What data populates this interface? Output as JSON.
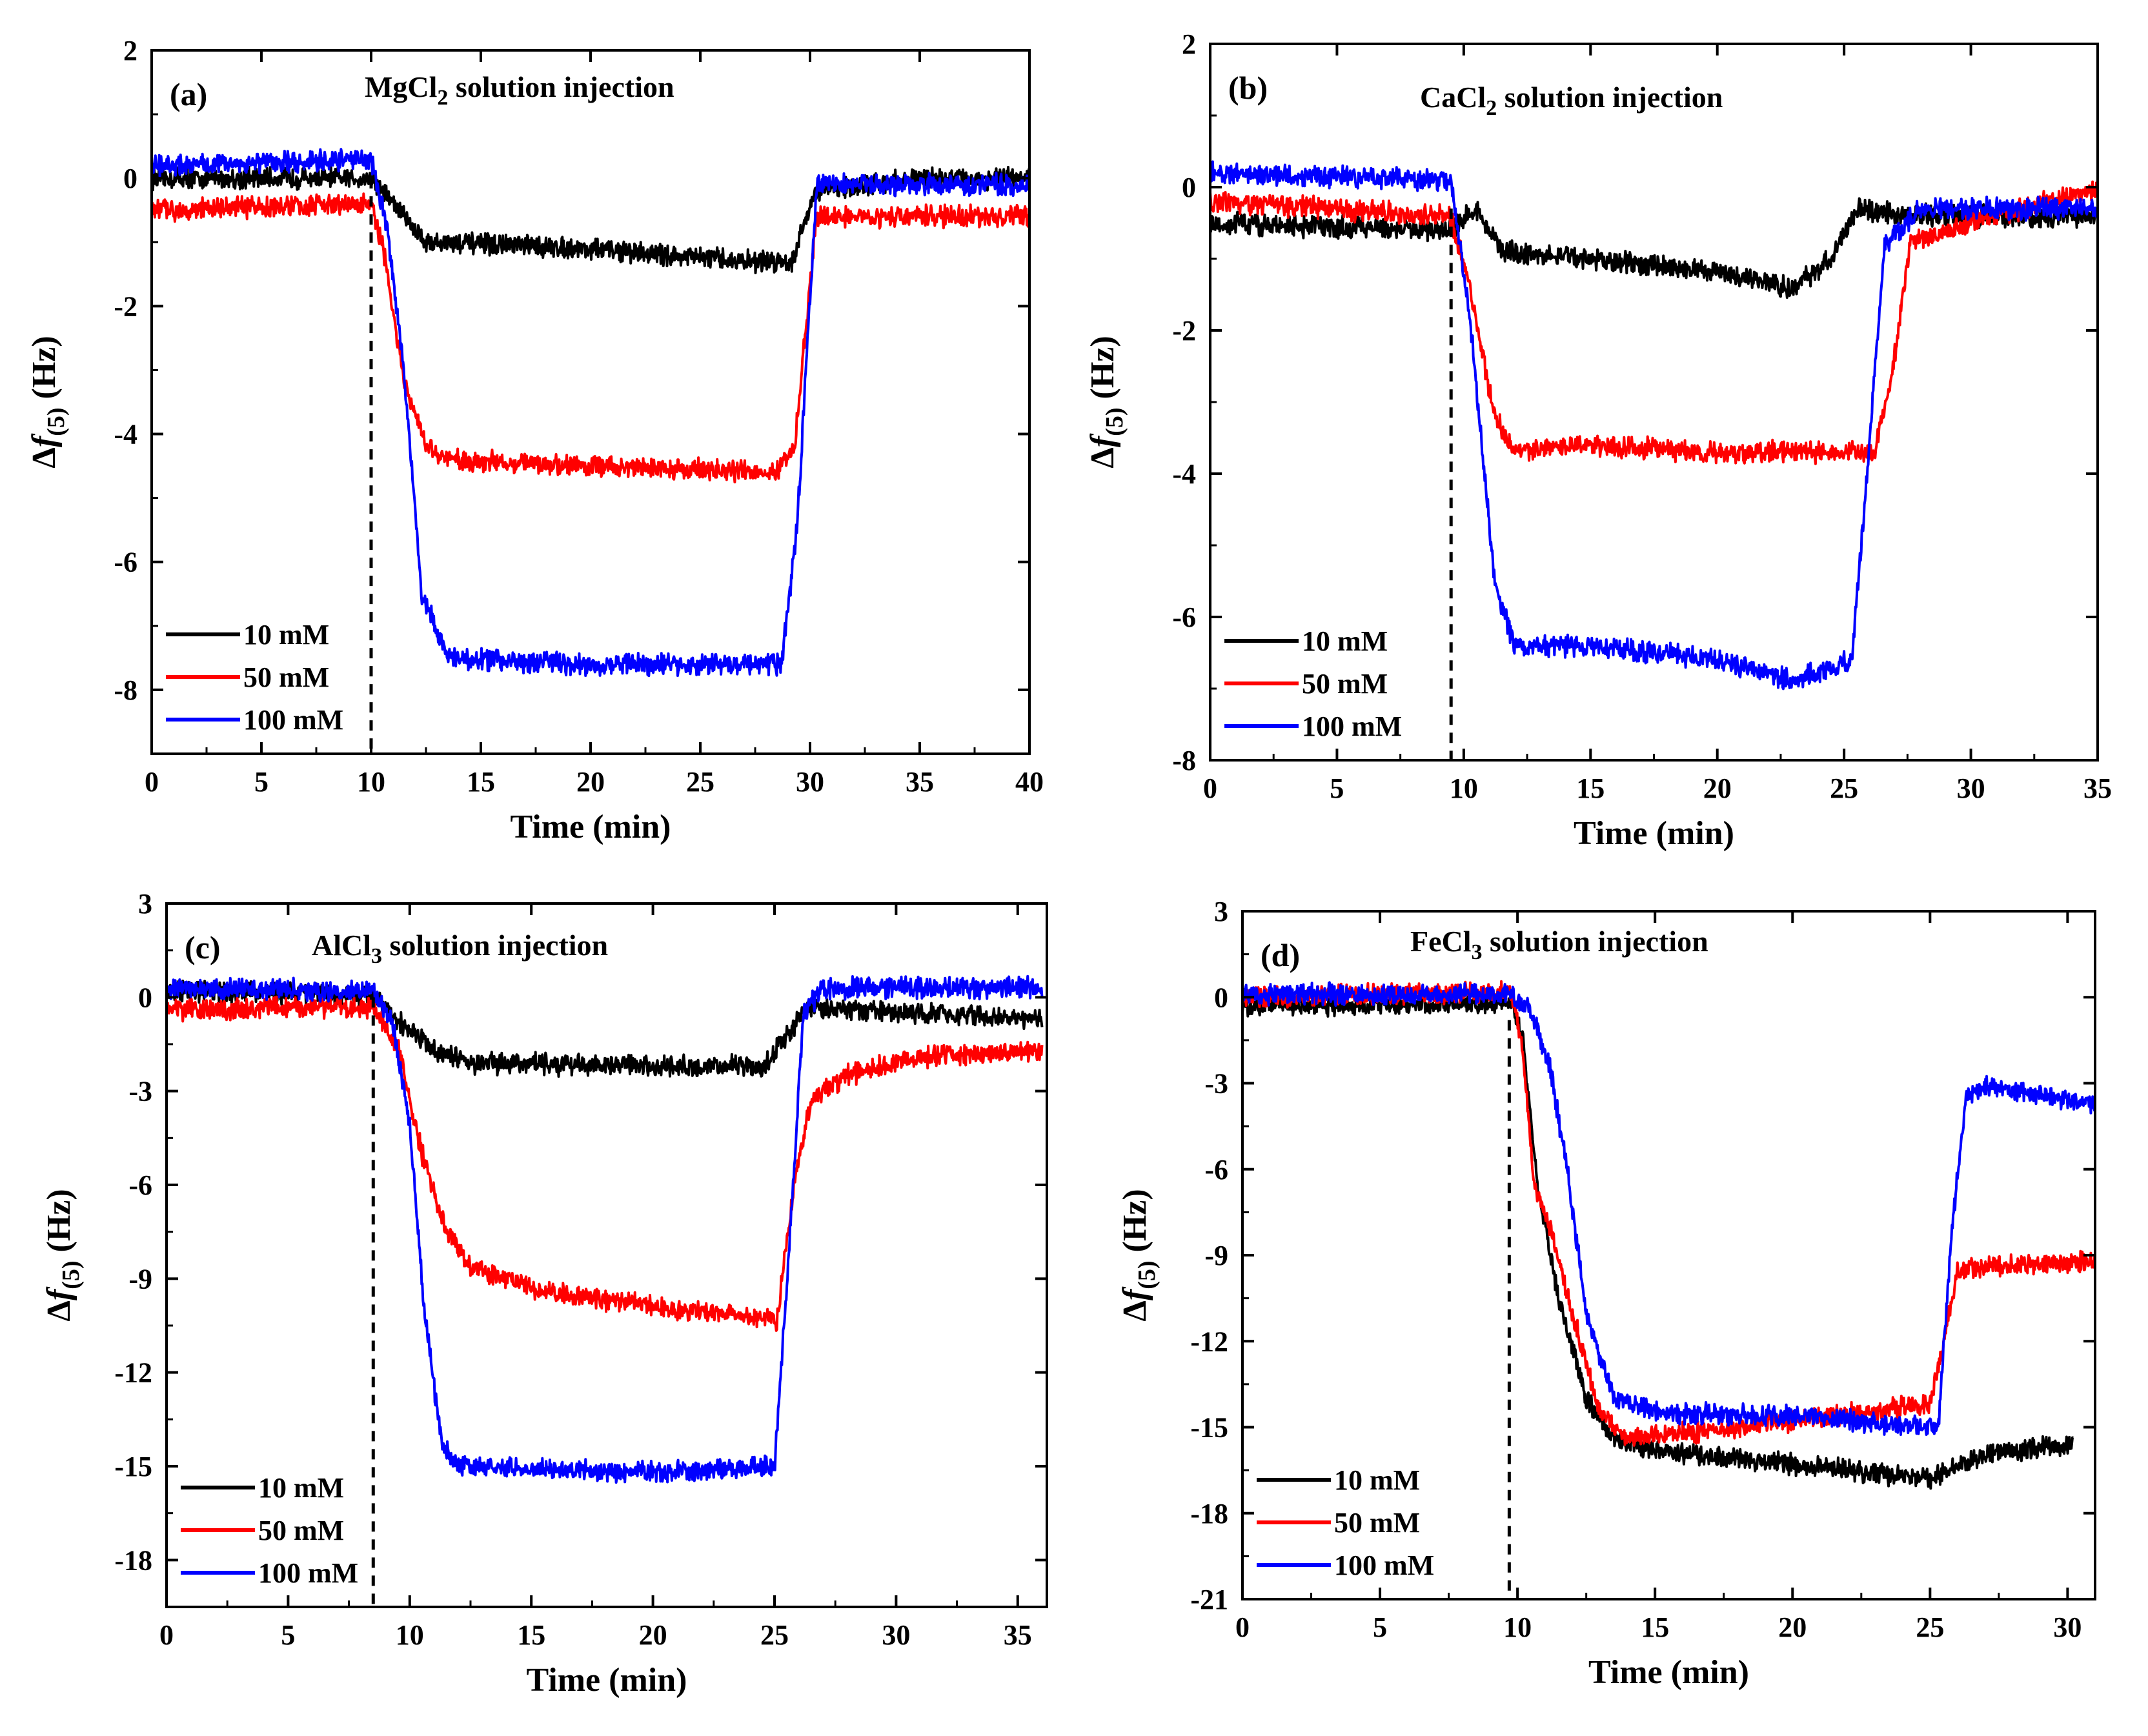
{
  "colors": {
    "10 mM": "#000000",
    "50 mM": "#ff0000",
    "100 mM": "#0000ff",
    "axes": "#000000",
    "background": "#ffffff"
  },
  "chart_data": [
    {
      "type": "line",
      "panel_label": "(a)",
      "title": "MgCl2 solution injection",
      "title_prefix": "MgCl",
      "title_subscript": "2",
      "title_suffix": " solution injection",
      "xlabel": "Time (min)",
      "ylabel": "Δf(5) (Hz)",
      "xlim": [
        0,
        40
      ],
      "ylim": [
        -9,
        2
      ],
      "xticks": [
        0,
        5,
        10,
        15,
        20,
        25,
        30,
        35,
        40
      ],
      "yticks": [
        -8,
        -6,
        -4,
        -2,
        0,
        2
      ],
      "injection_time": 10,
      "legend_position": "bottom-left",
      "series": [
        {
          "name": "10  mM",
          "color": "#000000",
          "x": [
            0,
            10,
            10.8,
            12.5,
            20,
            27,
            29.2,
            30.2,
            35,
            40
          ],
          "y": [
            0,
            0,
            -0.3,
            -1.0,
            -1.1,
            -1.3,
            -1.3,
            -0.2,
            0,
            0
          ]
        },
        {
          "name": "50  mM",
          "color": "#ff0000",
          "x": [
            0,
            10,
            10.6,
            11.5,
            12.5,
            13.5,
            20,
            28.5,
            29.3,
            30.3,
            35,
            40
          ],
          "y": [
            -0.5,
            -0.4,
            -1.2,
            -3.2,
            -4.2,
            -4.4,
            -4.5,
            -4.6,
            -4.2,
            -0.6,
            -0.6,
            -0.6
          ]
        },
        {
          "name": "100 mM",
          "color": "#0000ff",
          "x": [
            0,
            10,
            10.7,
            11.5,
            12.3,
            13.5,
            20,
            28.7,
            29.4,
            30.3,
            35,
            40
          ],
          "y": [
            0.2,
            0.3,
            -0.7,
            -3.0,
            -6.5,
            -7.5,
            -7.6,
            -7.6,
            -5.5,
            -0.1,
            -0.1,
            -0.1
          ]
        }
      ]
    },
    {
      "type": "line",
      "panel_label": "(b)",
      "title": "CaCl2 solution injection",
      "title_prefix": "CaCl",
      "title_subscript": "2",
      "title_suffix": " solution injection",
      "xlabel": "Time (min)",
      "ylabel": "Δf(5) (Hz)",
      "xlim": [
        0,
        35
      ],
      "ylim": [
        -8,
        2
      ],
      "xticks": [
        0,
        5,
        10,
        15,
        20,
        25,
        30,
        35
      ],
      "yticks": [
        -8,
        -6,
        -4,
        -2,
        0,
        2
      ],
      "injection_time": 9.5,
      "legend_position": "bottom-left",
      "series": [
        {
          "name": "10  mM",
          "color": "#000000",
          "x": [
            0,
            9.5,
            10.5,
            11.5,
            15,
            20,
            23,
            24.5,
            25.5,
            28,
            35
          ],
          "y": [
            -0.5,
            -0.6,
            -0.3,
            -0.9,
            -1.0,
            -1.2,
            -1.4,
            -1.0,
            -0.3,
            -0.4,
            -0.4
          ]
        },
        {
          "name": "50  mM",
          "color": "#ff0000",
          "x": [
            0,
            9.5,
            10.3,
            11.2,
            12,
            15,
            20,
            26.2,
            26.9,
            27.6,
            30,
            35
          ],
          "y": [
            -0.2,
            -0.4,
            -1.5,
            -3.2,
            -3.7,
            -3.6,
            -3.7,
            -3.7,
            -2.6,
            -0.8,
            -0.5,
            0.0
          ]
        },
        {
          "name": "100 mM",
          "color": "#0000ff",
          "x": [
            0,
            9.5,
            10.3,
            11.2,
            12,
            15,
            20,
            23,
            25.3,
            25.9,
            26.6,
            28,
            35
          ],
          "y": [
            0.2,
            0.1,
            -2.0,
            -5.5,
            -6.4,
            -6.4,
            -6.6,
            -6.9,
            -6.6,
            -4.0,
            -0.8,
            -0.3,
            -0.3
          ]
        }
      ]
    },
    {
      "type": "line",
      "panel_label": "(c)",
      "title": "AlCl3 solution injection",
      "title_prefix": "AlCl",
      "title_subscript": "3",
      "title_suffix": " solution injection",
      "xlabel": "Time (min)",
      "ylabel": "Δf(5) (Hz)",
      "xlim": [
        0,
        36.2
      ],
      "ylim": [
        -19.5,
        3
      ],
      "xticks": [
        0,
        5,
        10,
        15,
        20,
        25,
        30,
        35
      ],
      "yticks": [
        -18,
        -15,
        -12,
        -9,
        -6,
        -3,
        0,
        3
      ],
      "injection_time": 8.5,
      "legend_position": "bottom-left",
      "series": [
        {
          "name": "10 mM",
          "color": "#000000",
          "x": [
            0,
            8.5,
            9.5,
            11,
            12.5,
            20,
            24.5,
            25.5,
            26.3,
            28,
            36
          ],
          "y": [
            0.2,
            0.1,
            -0.7,
            -1.7,
            -2.1,
            -2.2,
            -2.2,
            -1.3,
            -0.3,
            -0.4,
            -0.7
          ]
        },
        {
          "name": "50 mM",
          "color": "#ff0000",
          "x": [
            0,
            8.5,
            9.6,
            10.5,
            11.5,
            12.5,
            15,
            20,
            25.1,
            25.8,
            26.5,
            28,
            31,
            36
          ],
          "y": [
            -0.4,
            -0.3,
            -1.8,
            -5.0,
            -7.5,
            -8.6,
            -9.3,
            -9.9,
            -10.3,
            -6.0,
            -3.3,
            -2.5,
            -1.9,
            -1.7
          ]
        },
        {
          "name": "100 mM",
          "color": "#0000ff",
          "x": [
            0,
            8.5,
            9.3,
            10.0,
            10.6,
            11.3,
            12,
            20,
            25.0,
            25.6,
            26.2,
            27,
            36
          ],
          "y": [
            0.3,
            0.2,
            -0.8,
            -4.0,
            -10.0,
            -14.2,
            -15.0,
            -15.2,
            -15.0,
            -8.0,
            -0.5,
            0.3,
            0.3
          ]
        }
      ]
    },
    {
      "type": "line",
      "panel_label": "(d)",
      "title": "FeCl3 solution injection",
      "title_prefix": "FeCl",
      "title_subscript": "3",
      "title_suffix": " solution injection",
      "xlabel": "Time (min)",
      "ylabel": "Δf(5) (Hz)",
      "xlim": [
        0,
        31
      ],
      "ylim": [
        -21,
        3
      ],
      "xticks": [
        0,
        5,
        10,
        15,
        20,
        25,
        30
      ],
      "yticks": [
        -21,
        -18,
        -15,
        -12,
        -9,
        -6,
        -3,
        0,
        3
      ],
      "injection_time": 9.7,
      "legend_position": "bottom-left",
      "series": [
        {
          "name": "10 mM",
          "color": "#000000",
          "x": [
            0,
            9.8,
            10.2,
            10.7,
            11.5,
            12.5,
            13.5,
            15,
            20,
            25,
            26.5,
            28,
            30.2
          ],
          "y": [
            -0.3,
            -0.2,
            -1.5,
            -6.5,
            -10.5,
            -14.0,
            -15.4,
            -15.8,
            -16.3,
            -16.8,
            -16.1,
            -15.8,
            -15.6
          ]
        },
        {
          "name": "50 mM",
          "color": "#ff0000",
          "x": [
            0,
            9.8,
            10.2,
            10.6,
            11.2,
            12,
            13,
            14,
            20,
            25.0,
            25.5,
            26.0,
            27,
            31
          ],
          "y": [
            0,
            0.2,
            -2.0,
            -6.5,
            -8.0,
            -11.0,
            -14.5,
            -15.4,
            -14.8,
            -14.2,
            -12.0,
            -9.5,
            -9.4,
            -9.2
          ]
        },
        {
          "name": "100 mM",
          "color": "#0000ff",
          "x": [
            0,
            9.8,
            10.5,
            11.2,
            11.8,
            12.5,
            13.5,
            15,
            20,
            25.3,
            25.8,
            26.3,
            27,
            31
          ],
          "y": [
            0.1,
            0.1,
            -0.5,
            -2.5,
            -6.0,
            -11.0,
            -14.0,
            -14.5,
            -14.6,
            -15.0,
            -8.0,
            -3.5,
            -3.1,
            -3.7
          ]
        }
      ]
    }
  ]
}
